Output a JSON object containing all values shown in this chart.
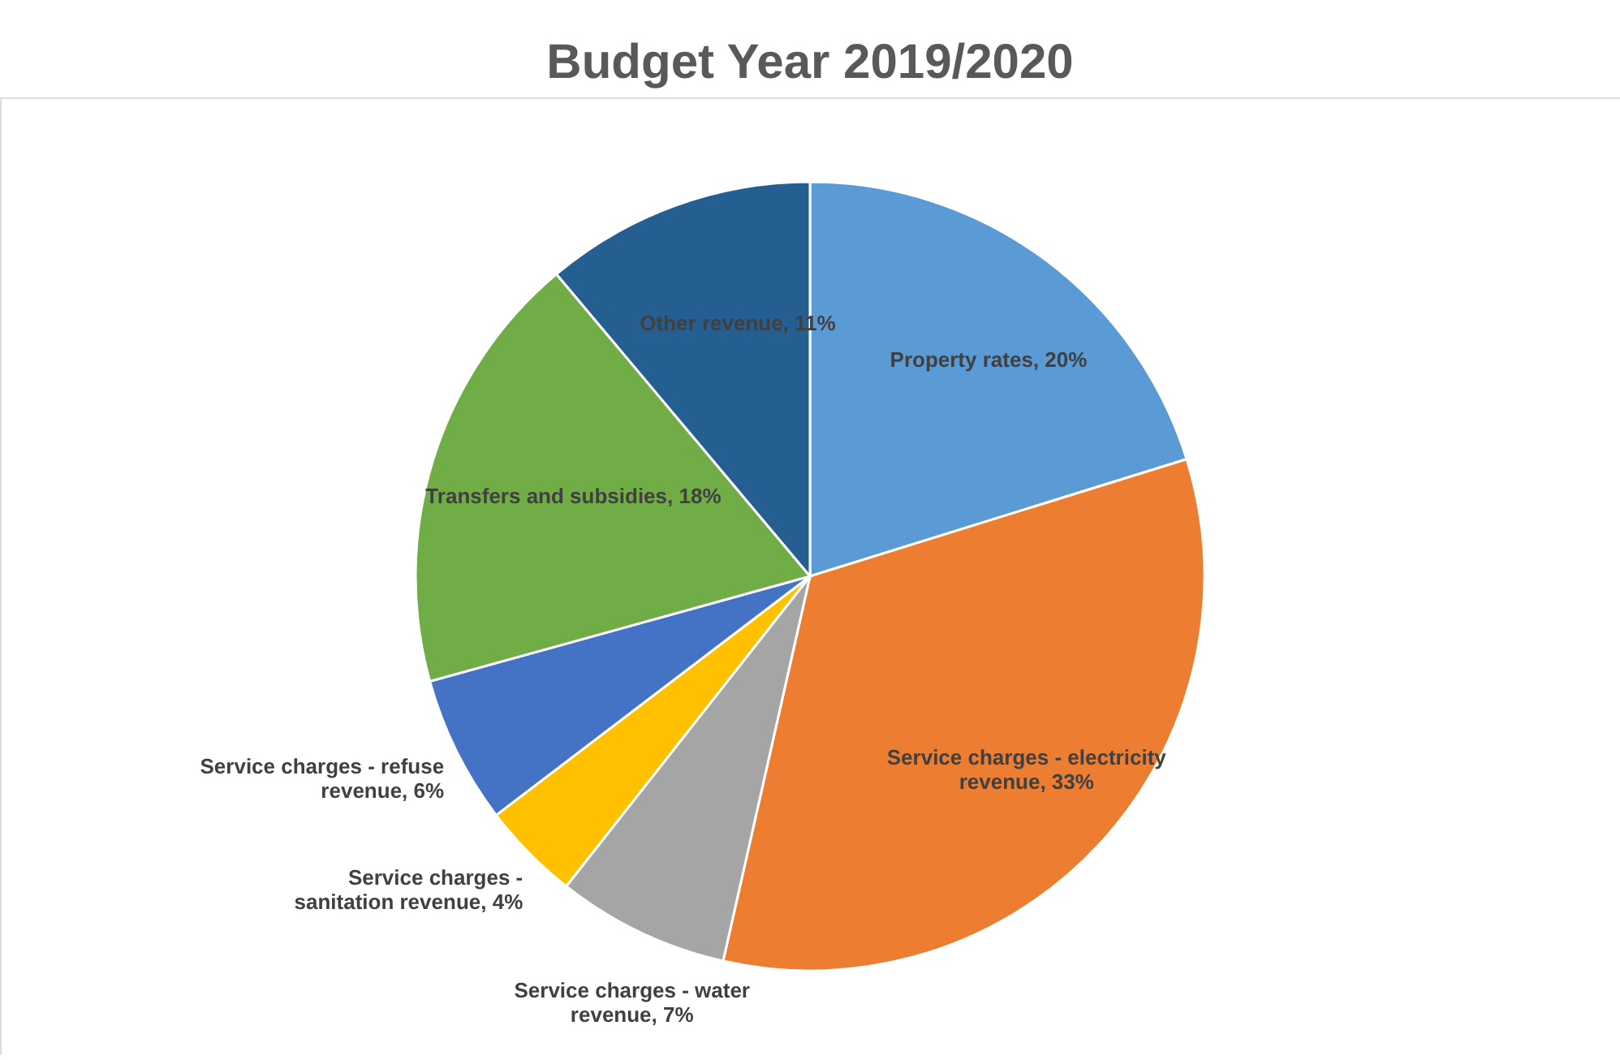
{
  "chart_data": {
    "type": "pie",
    "title": "Budget Year 2019/2020",
    "categories": [
      "Property rates",
      "Service charges - electricity revenue",
      "Service charges - water revenue",
      "Service charges - sanitation revenue",
      "Service charges - refuse revenue",
      "Transfers and subsidies",
      "Other revenue"
    ],
    "values": [
      20,
      33,
      7,
      4,
      6,
      18,
      11
    ],
    "value_labels": [
      "20%",
      "33%",
      "7%",
      "4%",
      "6%",
      "18%",
      "11%"
    ],
    "colors": [
      "#5b9bd5",
      "#ed7d31",
      "#a5a5a5",
      "#ffc000",
      "#4472c4",
      "#70ad47",
      "#255e91"
    ],
    "legend": false
  }
}
